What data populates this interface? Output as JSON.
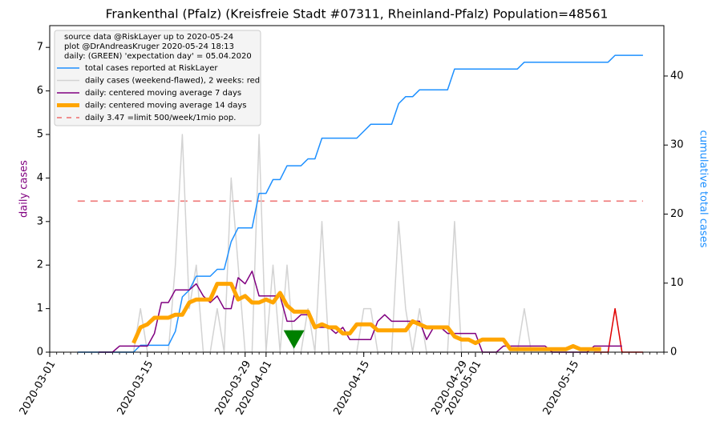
{
  "chart_data": {
    "type": "line",
    "title": "Frankenthal (Pfalz) (Kreisfreie Stadt #07311, Rheinland-Pfalz) Population=48561",
    "ylabel": "daily cases",
    "ylabel_color": "#800080",
    "y2label": "cumulative total cases",
    "y2label_color": "#1e90ff",
    "legend_header": [
      "source data @RiskLayer up to 2020-05-24",
      "plot @DrAndreasKruger 2020-05-24 18:13",
      "daily: (GREEN) 'expectation day' = 05.04.2020"
    ],
    "legend_position": "upper left",
    "x": [
      "2020-03-05",
      "2020-03-06",
      "2020-03-07",
      "2020-03-08",
      "2020-03-09",
      "2020-03-10",
      "2020-03-11",
      "2020-03-12",
      "2020-03-13",
      "2020-03-14",
      "2020-03-15",
      "2020-03-16",
      "2020-03-17",
      "2020-03-18",
      "2020-03-19",
      "2020-03-20",
      "2020-03-21",
      "2020-03-22",
      "2020-03-23",
      "2020-03-24",
      "2020-03-25",
      "2020-03-26",
      "2020-03-27",
      "2020-03-28",
      "2020-03-29",
      "2020-03-30",
      "2020-03-31",
      "2020-04-01",
      "2020-04-02",
      "2020-04-03",
      "2020-04-04",
      "2020-04-05",
      "2020-04-06",
      "2020-04-07",
      "2020-04-08",
      "2020-04-09",
      "2020-04-10",
      "2020-04-11",
      "2020-04-12",
      "2020-04-13",
      "2020-04-14",
      "2020-04-15",
      "2020-04-16",
      "2020-04-17",
      "2020-04-18",
      "2020-04-19",
      "2020-04-20",
      "2020-04-21",
      "2020-04-22",
      "2020-04-23",
      "2020-04-24",
      "2020-04-25",
      "2020-04-26",
      "2020-04-27",
      "2020-04-28",
      "2020-04-29",
      "2020-04-30",
      "2020-05-01",
      "2020-05-02",
      "2020-05-03",
      "2020-05-04",
      "2020-05-05",
      "2020-05-06",
      "2020-05-07",
      "2020-05-08",
      "2020-05-09",
      "2020-05-10",
      "2020-05-11",
      "2020-05-12",
      "2020-05-13",
      "2020-05-14",
      "2020-05-15",
      "2020-05-16",
      "2020-05-17",
      "2020-05-18",
      "2020-05-19",
      "2020-05-20",
      "2020-05-21",
      "2020-05-22",
      "2020-05-23",
      "2020-05-24",
      "2020-05-25"
    ],
    "series": [
      {
        "name": "total cases reported at RiskLayer",
        "color": "#1e90ff",
        "width": 1.5,
        "axis": "y2",
        "values": [
          0,
          0,
          0,
          0,
          0,
          0,
          0,
          0,
          0,
          1,
          1,
          1,
          1,
          1,
          3,
          8,
          9,
          11,
          11,
          11,
          12,
          12,
          16,
          18,
          18,
          18,
          23,
          23,
          25,
          25,
          27,
          27,
          27,
          28,
          28,
          31,
          31,
          31,
          31,
          31,
          31,
          32,
          33,
          33,
          33,
          33,
          36,
          37,
          37,
          38,
          38,
          38,
          38,
          38,
          41,
          41,
          41,
          41,
          41,
          41,
          41,
          41,
          41,
          41,
          42,
          42,
          42,
          42,
          42,
          42,
          42,
          42,
          42,
          42,
          42,
          42,
          42,
          43,
          43,
          43,
          43,
          43
        ]
      },
      {
        "name": "daily cases (weekend-flawed), 2 weeks: red",
        "color": "#d3d3d3",
        "width": 1.5,
        "highlight_last": 7,
        "highlight_color": "#e00000",
        "values": [
          0,
          0,
          0,
          0,
          0,
          0,
          0,
          0,
          0,
          1,
          0,
          0,
          0,
          0,
          2,
          5,
          1,
          2,
          0,
          0,
          1,
          0,
          4,
          2,
          0,
          0,
          5,
          0,
          2,
          0,
          2,
          0,
          0,
          1,
          0,
          3,
          0,
          0,
          0,
          0,
          0,
          1,
          1,
          0,
          0,
          0,
          3,
          1,
          0,
          1,
          0,
          0,
          0,
          0,
          3,
          0,
          0,
          0,
          0,
          0,
          0,
          0,
          0,
          0,
          1,
          0,
          0,
          0,
          0,
          0,
          0,
          0,
          0,
          0,
          0,
          0,
          0,
          1,
          0,
          0,
          0,
          0
        ]
      },
      {
        "name": "daily: centered moving average 7 days",
        "color": "#800080",
        "width": 1.5,
        "values": [
          null,
          null,
          null,
          0,
          0,
          0,
          0.14,
          0.14,
          0.14,
          0.14,
          0.14,
          0.43,
          1.14,
          1.14,
          1.43,
          1.43,
          1.43,
          1.57,
          1.29,
          1.14,
          1.29,
          1,
          1,
          1.71,
          1.57,
          1.86,
          1.29,
          1.29,
          1.29,
          1.29,
          0.71,
          0.71,
          0.86,
          0.86,
          0.57,
          0.57,
          0.57,
          0.43,
          0.57,
          0.29,
          0.29,
          0.29,
          0.29,
          0.71,
          0.86,
          0.71,
          0.71,
          0.71,
          0.71,
          0.71,
          0.29,
          0.57,
          0.57,
          0.43,
          0.43,
          0.43,
          0.43,
          0.43,
          0,
          0,
          0,
          0.14,
          0.14,
          0.14,
          0.14,
          0.14,
          0.14,
          0.14,
          0,
          0,
          0,
          0,
          0,
          0,
          0.14,
          0.14,
          0.14,
          0.14,
          0.14,
          null,
          null,
          null
        ]
      },
      {
        "name": "daily: centered moving average 14 days",
        "color": "#ffa500",
        "width": 5,
        "values": [
          null,
          null,
          null,
          null,
          null,
          null,
          null,
          null,
          0.21,
          0.57,
          0.64,
          0.79,
          0.79,
          0.79,
          0.86,
          0.86,
          1.14,
          1.21,
          1.21,
          1.21,
          1.57,
          1.57,
          1.57,
          1.21,
          1.29,
          1.14,
          1.14,
          1.21,
          1.14,
          1.36,
          1.07,
          0.93,
          0.93,
          0.93,
          0.57,
          0.64,
          0.57,
          0.57,
          0.43,
          0.43,
          0.64,
          0.64,
          0.64,
          0.5,
          0.5,
          0.5,
          0.5,
          0.5,
          0.71,
          0.64,
          0.57,
          0.57,
          0.57,
          0.57,
          0.36,
          0.29,
          0.29,
          0.21,
          0.29,
          0.29,
          0.29,
          0.29,
          0.07,
          0.07,
          0.07,
          0.07,
          0.07,
          0.07,
          0.07,
          0.07,
          0.07,
          0.14,
          0.07,
          0.07,
          0.07,
          0.07,
          null,
          null,
          null,
          null,
          null,
          null
        ]
      }
    ],
    "limit": {
      "name": "daily 3.47 =limit 500/week/1mio pop.",
      "value": 3.47,
      "color": "#f08080",
      "dash": true
    },
    "marker": {
      "x": "2020-04-05",
      "y": 0.3,
      "color": "green"
    },
    "xlim": [
      "2020-03-01",
      "2020-05-28"
    ],
    "xticks": [
      "2020-03-01",
      "2020-03-15",
      "2020-03-29",
      "2020-04-01",
      "2020-04-15",
      "2020-04-29",
      "2020-05-01",
      "2020-05-15"
    ],
    "ylim": [
      0,
      7.5
    ],
    "yticks": [
      0,
      1,
      2,
      3,
      4,
      5,
      6,
      7
    ],
    "y2lim": [
      0,
      47.3
    ],
    "y2ticks": [
      0,
      10,
      20,
      30,
      40
    ]
  }
}
